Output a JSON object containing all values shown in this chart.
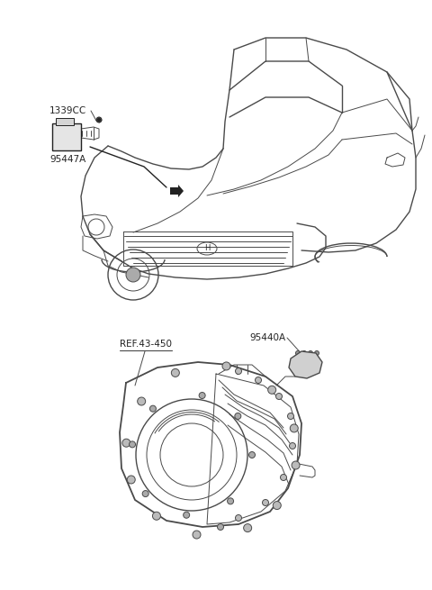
{
  "bg_color": "#ffffff",
  "lc": "#4a4a4a",
  "lc_dark": "#222222",
  "lc_med": "#555555",
  "label_1339CC": "1339CC",
  "label_95447A": "95447A",
  "label_REF": "REF.43-450",
  "label_95440A": "95440A",
  "font_size": 7.5,
  "fig_width": 4.8,
  "fig_height": 6.55,
  "dpi": 100,
  "car_color": "#dddddd",
  "trans_color": "#cccccc"
}
